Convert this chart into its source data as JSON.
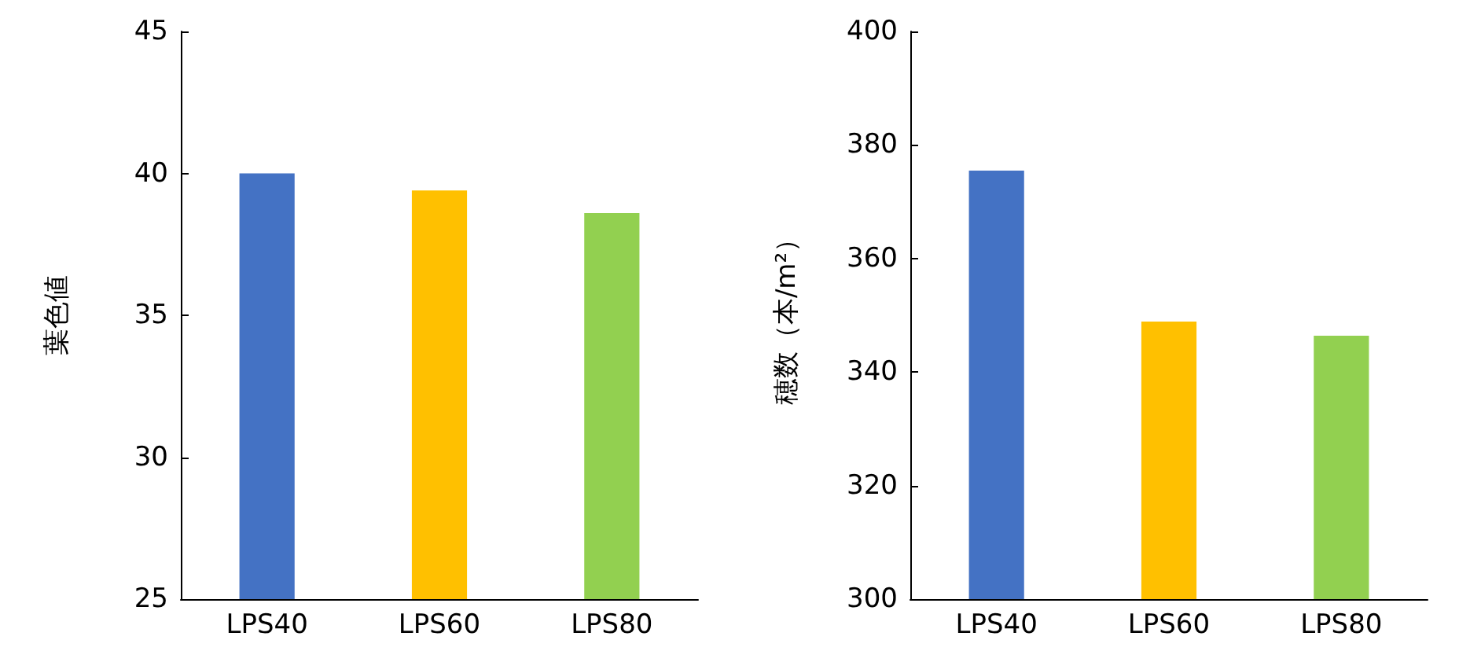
{
  "chart_data": [
    {
      "type": "bar",
      "ylabel": "葉色値",
      "categories": [
        "LPS40",
        "LPS60",
        "LPS80"
      ],
      "values": [
        40.0,
        39.4,
        38.6
      ],
      "colors": [
        "#4472c4",
        "#ffc000",
        "#92d050"
      ],
      "ylim": [
        25,
        45
      ],
      "yticks": [
        25,
        30,
        35,
        40,
        45
      ],
      "grid": false
    },
    {
      "type": "bar",
      "ylabel": "穂数（本/m²）",
      "categories": [
        "LPS40",
        "LPS60",
        "LPS80"
      ],
      "values": [
        375.5,
        348.9,
        346.4
      ],
      "colors": [
        "#4472c4",
        "#ffc000",
        "#92d050"
      ],
      "ylim": [
        300,
        400
      ],
      "yticks": [
        300,
        320,
        340,
        360,
        380,
        400
      ],
      "grid": false
    }
  ]
}
